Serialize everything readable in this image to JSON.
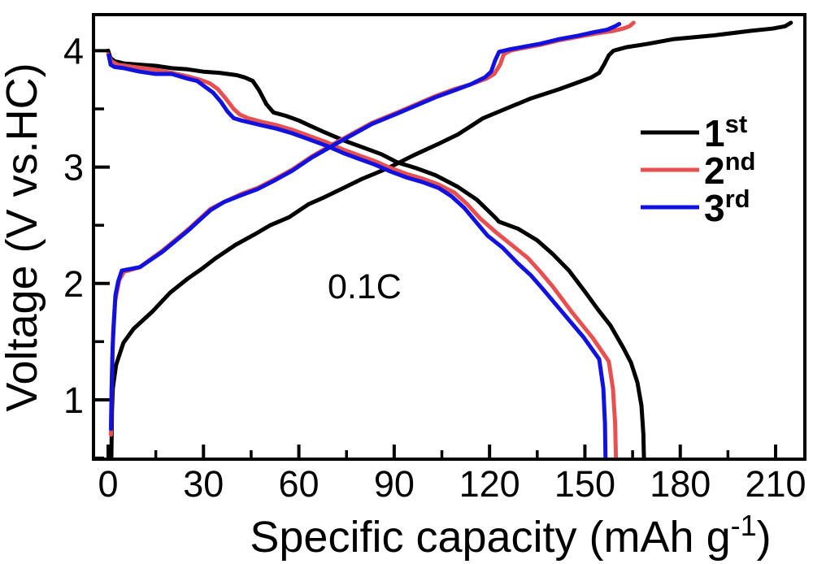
{
  "figure": {
    "background": "#ffffff",
    "frame_color": "#000000",
    "annotation": {
      "text": "0.1C"
    }
  },
  "chart_data": {
    "type": "line",
    "title": "",
    "xlabel": {
      "pre": "Specific capacity (mAh g",
      "sup": "-1",
      "post": ")"
    },
    "ylabel": "Voltage (V vs.HC)",
    "xlim": [
      -4.6,
      219.2
    ],
    "ylim": [
      0.49,
      4.31
    ],
    "x_major_ticks": [
      0,
      30,
      60,
      90,
      120,
      150,
      180,
      210
    ],
    "x_minor_ticks": [
      15,
      45,
      75,
      105,
      135,
      165,
      195
    ],
    "y_major_ticks": [
      1,
      2,
      3,
      4
    ],
    "y_minor_ticks": [
      0.5,
      1.5,
      2.5,
      3.5
    ],
    "grid": false,
    "legend": {
      "position": "right-middle",
      "entries": [
        {
          "label_base": "1",
          "label_sup": "st",
          "color": "#000000"
        },
        {
          "label_base": "2",
          "label_sup": "nd",
          "color": "#e85050"
        },
        {
          "label_base": "3",
          "label_sup": "rd",
          "color": "#1212e0"
        }
      ]
    },
    "annotation": {
      "text": "0.1C",
      "x": 69,
      "v": 1.85
    },
    "series": [
      {
        "name": "1st cycle charge",
        "cycle": "1st",
        "branch": "charge",
        "color": "#000000",
        "points": [
          [
            1.0,
            0.45
          ],
          [
            1.2,
            0.9
          ],
          [
            1.5,
            1.1
          ],
          [
            2.5,
            1.3
          ],
          [
            4.8,
            1.49
          ],
          [
            8,
            1.61
          ],
          [
            14,
            1.76
          ],
          [
            19.5,
            1.92
          ],
          [
            25,
            2.04
          ],
          [
            29.2,
            2.12
          ],
          [
            34,
            2.22
          ],
          [
            40,
            2.33
          ],
          [
            46,
            2.42
          ],
          [
            51,
            2.5
          ],
          [
            57,
            2.57
          ],
          [
            63,
            2.68
          ],
          [
            68,
            2.74
          ],
          [
            74,
            2.82
          ],
          [
            80,
            2.9
          ],
          [
            88,
            2.99
          ],
          [
            96,
            3.1
          ],
          [
            104,
            3.2
          ],
          [
            110,
            3.28
          ],
          [
            114,
            3.35
          ],
          [
            118,
            3.42
          ],
          [
            125,
            3.5
          ],
          [
            133,
            3.59
          ],
          [
            142,
            3.67
          ],
          [
            148,
            3.73
          ],
          [
            152,
            3.77
          ],
          [
            154.5,
            3.81
          ],
          [
            156,
            3.88
          ],
          [
            157.5,
            3.96
          ],
          [
            159,
            4.0
          ],
          [
            163,
            4.03
          ],
          [
            170,
            4.06
          ],
          [
            178,
            4.1
          ],
          [
            190,
            4.13
          ],
          [
            202,
            4.17
          ],
          [
            209,
            4.19
          ],
          [
            213,
            4.21
          ],
          [
            214.8,
            4.24
          ]
        ]
      },
      {
        "name": "1st cycle discharge",
        "cycle": "1st",
        "branch": "discharge",
        "color": "#000000",
        "points": [
          [
            0,
            4.0
          ],
          [
            0.7,
            3.94
          ],
          [
            2,
            3.91
          ],
          [
            5,
            3.89
          ],
          [
            10,
            3.88
          ],
          [
            15,
            3.87
          ],
          [
            20,
            3.85
          ],
          [
            25,
            3.84
          ],
          [
            30,
            3.82
          ],
          [
            35,
            3.81
          ],
          [
            40.5,
            3.79
          ],
          [
            43,
            3.77
          ],
          [
            45.5,
            3.74
          ],
          [
            47.5,
            3.66
          ],
          [
            49.8,
            3.54
          ],
          [
            52,
            3.47
          ],
          [
            56,
            3.44
          ],
          [
            60,
            3.4
          ],
          [
            64,
            3.35
          ],
          [
            68,
            3.3
          ],
          [
            74,
            3.23
          ],
          [
            80,
            3.17
          ],
          [
            86,
            3.11
          ],
          [
            91,
            3.04
          ],
          [
            97,
            2.99
          ],
          [
            103,
            2.93
          ],
          [
            110,
            2.83
          ],
          [
            116,
            2.72
          ],
          [
            122,
            2.56
          ],
          [
            123,
            2.53
          ],
          [
            129,
            2.47
          ],
          [
            135,
            2.37
          ],
          [
            140,
            2.25
          ],
          [
            145,
            2.11
          ],
          [
            150,
            1.93
          ],
          [
            154,
            1.78
          ],
          [
            158,
            1.64
          ],
          [
            162,
            1.45
          ],
          [
            164.5,
            1.32
          ],
          [
            166.5,
            1.15
          ],
          [
            167.8,
            0.95
          ],
          [
            168.4,
            0.7
          ],
          [
            168.6,
            0.45
          ]
        ]
      },
      {
        "name": "2nd cycle charge",
        "cycle": "2nd",
        "branch": "charge",
        "color": "#e85050",
        "points": [
          [
            0.9,
            0.7
          ],
          [
            1.2,
            1.2
          ],
          [
            1.6,
            1.6
          ],
          [
            2.2,
            1.85
          ],
          [
            3.5,
            2.03
          ],
          [
            5,
            2.1
          ],
          [
            10,
            2.14
          ],
          [
            17,
            2.28
          ],
          [
            25.4,
            2.47
          ],
          [
            32.2,
            2.64
          ],
          [
            36.5,
            2.7
          ],
          [
            42,
            2.77
          ],
          [
            47,
            2.82
          ],
          [
            52,
            2.89
          ],
          [
            58,
            2.98
          ],
          [
            64,
            3.09
          ],
          [
            71,
            3.2
          ],
          [
            77,
            3.29
          ],
          [
            83,
            3.38
          ],
          [
            91,
            3.47
          ],
          [
            97,
            3.54
          ],
          [
            103,
            3.61
          ],
          [
            109,
            3.67
          ],
          [
            114,
            3.71
          ],
          [
            119,
            3.76
          ],
          [
            121.5,
            3.8
          ],
          [
            123.3,
            3.88
          ],
          [
            124.5,
            3.97
          ],
          [
            126.5,
            4.0
          ],
          [
            130,
            4.02
          ],
          [
            136,
            4.05
          ],
          [
            142,
            4.09
          ],
          [
            148,
            4.12
          ],
          [
            154,
            4.15
          ],
          [
            159,
            4.17
          ],
          [
            162,
            4.19
          ],
          [
            164,
            4.21
          ],
          [
            165.3,
            4.24
          ]
        ]
      },
      {
        "name": "2nd cycle discharge",
        "cycle": "2nd",
        "branch": "discharge",
        "color": "#e85050",
        "points": [
          [
            0,
            3.97
          ],
          [
            1,
            3.91
          ],
          [
            3,
            3.88
          ],
          [
            8,
            3.86
          ],
          [
            14,
            3.84
          ],
          [
            20,
            3.81
          ],
          [
            25,
            3.78
          ],
          [
            29,
            3.75
          ],
          [
            32,
            3.72
          ],
          [
            34.5,
            3.67
          ],
          [
            37,
            3.59
          ],
          [
            39.5,
            3.5
          ],
          [
            41.5,
            3.45
          ],
          [
            44,
            3.42
          ],
          [
            48,
            3.39
          ],
          [
            53,
            3.36
          ],
          [
            58,
            3.32
          ],
          [
            63,
            3.27
          ],
          [
            69,
            3.21
          ],
          [
            74,
            3.15
          ],
          [
            79,
            3.1
          ],
          [
            84,
            3.05
          ],
          [
            89,
            2.99
          ],
          [
            94,
            2.94
          ],
          [
            99,
            2.9
          ],
          [
            104,
            2.85
          ],
          [
            109,
            2.78
          ],
          [
            113,
            2.68
          ],
          [
            117,
            2.56
          ],
          [
            122,
            2.44
          ],
          [
            127,
            2.33
          ],
          [
            132,
            2.22
          ],
          [
            136,
            2.1
          ],
          [
            140,
            1.97
          ],
          [
            146,
            1.75
          ],
          [
            152.5,
            1.53
          ],
          [
            157.5,
            1.33
          ],
          [
            158.8,
            1.1
          ],
          [
            159.5,
            0.8
          ],
          [
            159.8,
            0.45
          ]
        ]
      },
      {
        "name": "3rd cycle charge",
        "cycle": "3rd",
        "branch": "charge",
        "color": "#1212e0",
        "points": [
          [
            0.9,
            0.75
          ],
          [
            1.1,
            1.1
          ],
          [
            1.4,
            1.45
          ],
          [
            1.8,
            1.65
          ],
          [
            2.3,
            1.9
          ],
          [
            3.2,
            2.02
          ],
          [
            4.3,
            2.11
          ],
          [
            10,
            2.14
          ],
          [
            17,
            2.27
          ],
          [
            25.4,
            2.46
          ],
          [
            32.2,
            2.63
          ],
          [
            36.5,
            2.7
          ],
          [
            42,
            2.76
          ],
          [
            47,
            2.81
          ],
          [
            52,
            2.88
          ],
          [
            58,
            2.97
          ],
          [
            64,
            3.08
          ],
          [
            71,
            3.19
          ],
          [
            77,
            3.28
          ],
          [
            83,
            3.37
          ],
          [
            91,
            3.46
          ],
          [
            97,
            3.53
          ],
          [
            103,
            3.6
          ],
          [
            109,
            3.66
          ],
          [
            114,
            3.71
          ],
          [
            118.5,
            3.77
          ],
          [
            120.5,
            3.82
          ],
          [
            121.8,
            3.92
          ],
          [
            123,
            3.99
          ],
          [
            126,
            4.01
          ],
          [
            130,
            4.03
          ],
          [
            136,
            4.06
          ],
          [
            142,
            4.1
          ],
          [
            148,
            4.13
          ],
          [
            153,
            4.16
          ],
          [
            157,
            4.18
          ],
          [
            159.5,
            4.21
          ],
          [
            160.8,
            4.23
          ]
        ]
      },
      {
        "name": "3rd cycle discharge",
        "cycle": "3rd",
        "branch": "discharge",
        "color": "#1212e0",
        "points": [
          [
            0.2,
            3.96
          ],
          [
            0.8,
            3.88
          ],
          [
            2,
            3.86
          ],
          [
            5,
            3.85
          ],
          [
            10,
            3.82
          ],
          [
            15,
            3.8
          ],
          [
            20,
            3.8
          ],
          [
            25,
            3.76
          ],
          [
            28,
            3.74
          ],
          [
            30.5,
            3.69
          ],
          [
            33,
            3.64
          ],
          [
            35.5,
            3.56
          ],
          [
            37.5,
            3.48
          ],
          [
            39.5,
            3.42
          ],
          [
            42,
            3.4
          ],
          [
            48,
            3.36
          ],
          [
            53,
            3.33
          ],
          [
            58,
            3.29
          ],
          [
            63,
            3.24
          ],
          [
            69,
            3.18
          ],
          [
            74,
            3.12
          ],
          [
            79,
            3.07
          ],
          [
            84,
            3.02
          ],
          [
            89,
            2.96
          ],
          [
            94,
            2.91
          ],
          [
            99,
            2.87
          ],
          [
            104,
            2.82
          ],
          [
            108,
            2.75
          ],
          [
            112,
            2.65
          ],
          [
            116,
            2.52
          ],
          [
            119.4,
            2.41
          ],
          [
            124,
            2.31
          ],
          [
            129,
            2.17
          ],
          [
            133,
            2.07
          ],
          [
            136.5,
            1.96
          ],
          [
            143,
            1.75
          ],
          [
            149.5,
            1.54
          ],
          [
            154.5,
            1.35
          ],
          [
            155.8,
            1.1
          ],
          [
            156.3,
            0.8
          ],
          [
            156.5,
            0.45
          ]
        ]
      }
    ]
  }
}
